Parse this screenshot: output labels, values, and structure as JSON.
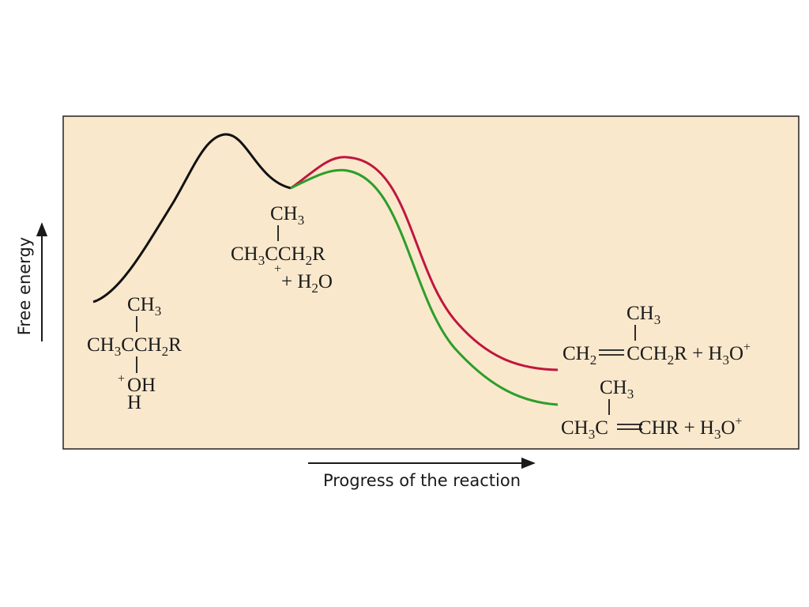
{
  "axes": {
    "y_label": "Free energy",
    "x_label": "Progress of the reaction"
  },
  "colors": {
    "background": "#f9e8cc",
    "frame": "#222222",
    "common_path": "#111111",
    "upper_product_path": "#c0163e",
    "lower_product_path": "#2c9e2a"
  },
  "species": {
    "reactant": {
      "methyl": {
        "pre": "CH",
        "sub": "3"
      },
      "chain": [
        "CH",
        "3",
        "CCH",
        "2",
        "R"
      ],
      "oxonium_charge": "+",
      "oxonium_o": "OH",
      "oxonium_h": "H"
    },
    "intermediate": {
      "methyl": {
        "pre": "CH",
        "sub": "3"
      },
      "chain": [
        "CH",
        "3",
        "CCH",
        "2",
        "R"
      ],
      "charge": "+",
      "water": [
        "+ H",
        "2",
        "O"
      ]
    },
    "product_upper": {
      "methyl": {
        "pre": "CH",
        "sub": "3"
      },
      "formula": [
        "CH",
        "2",
        "CCH",
        "2",
        "R + H",
        "3",
        "O",
        "+"
      ]
    },
    "product_lower": {
      "methyl": {
        "pre": "CH",
        "sub": "3"
      },
      "formula": [
        "CH",
        "3",
        "C",
        "CHR + H",
        "3",
        "O",
        "+"
      ]
    }
  }
}
